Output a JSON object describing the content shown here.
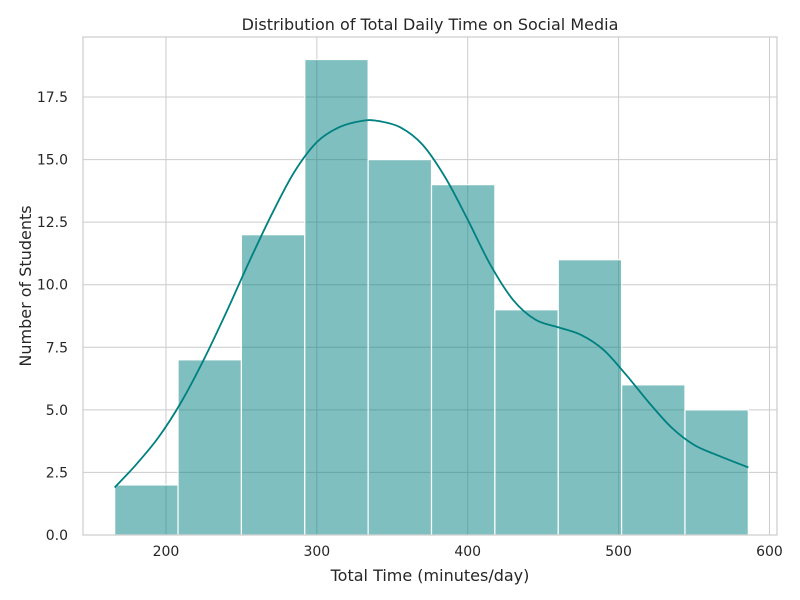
{
  "chart_data": {
    "type": "histogram",
    "title": "Distribution of Total Daily Time on Social Media",
    "xlabel": "Total Time (minutes/day)",
    "ylabel": "Number of Students",
    "xlim": [
      145,
      605
    ],
    "ylim": [
      0,
      19.9
    ],
    "xticks": [
      200,
      300,
      400,
      500,
      600
    ],
    "yticks": [
      0,
      2.5,
      5,
      7.5,
      10,
      12.5,
      15,
      17.5
    ],
    "ytick_labels": [
      "0.0",
      "2.5",
      "5.0",
      "7.5",
      "10.0",
      "12.5",
      "15.0",
      "17.5"
    ],
    "bins": [
      {
        "x0": 166,
        "x1": 208,
        "count": 2
      },
      {
        "x0": 208,
        "x1": 250,
        "count": 7
      },
      {
        "x0": 250,
        "x1": 292,
        "count": 12
      },
      {
        "x0": 292,
        "x1": 334,
        "count": 19
      },
      {
        "x0": 334,
        "x1": 376,
        "count": 15
      },
      {
        "x0": 376,
        "x1": 418,
        "count": 14
      },
      {
        "x0": 418,
        "x1": 460,
        "count": 9
      },
      {
        "x0": 460,
        "x1": 502,
        "count": 11
      },
      {
        "x0": 502,
        "x1": 544,
        "count": 6
      },
      {
        "x0": 544,
        "x1": 586,
        "count": 5
      }
    ],
    "kde": {
      "x": [
        166,
        180,
        195,
        210,
        225,
        240,
        255,
        270,
        285,
        300,
        315,
        330,
        340,
        355,
        370,
        385,
        400,
        415,
        430,
        445,
        460,
        475,
        490,
        505,
        520,
        535,
        550,
        565,
        586
      ],
      "y": [
        1.9,
        2.8,
        3.9,
        5.3,
        7.0,
        8.9,
        10.9,
        12.8,
        14.5,
        15.7,
        16.3,
        16.55,
        16.55,
        16.3,
        15.6,
        14.3,
        12.6,
        10.8,
        9.4,
        8.6,
        8.3,
        8.0,
        7.4,
        6.4,
        5.3,
        4.3,
        3.6,
        3.2,
        2.7
      ]
    },
    "bar_color": "#008080",
    "bar_opacity": 0.5,
    "kde_color": "#008080",
    "grid": true
  }
}
